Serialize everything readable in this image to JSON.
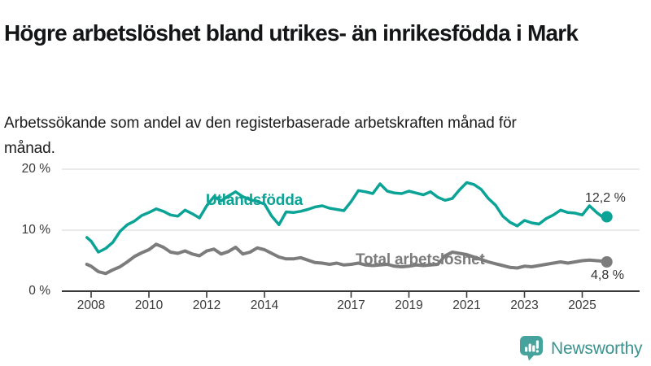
{
  "header": {
    "title": "Högre arbetslöshet bland utrikes- än inrikesfödda i Mark",
    "subtitle": "Arbetssökande som andel av den registerbaserade arbetskraften månad för månad."
  },
  "colors": {
    "accent_teal": "#0aa396",
    "line_gray": "#7c7c7c",
    "grid": "#e3e3e3",
    "axis": "#3a3a3a",
    "logo_teal": "#46a29d",
    "logo_text": "#3a938f"
  },
  "chart_data": {
    "type": "line",
    "title": "Högre arbetslöshet bland utrikes- än inrikesfödda i Mark",
    "xlabel": "",
    "ylabel": "",
    "xlim": [
      2007.8,
      2026.1
    ],
    "ylim": [
      0,
      21
    ],
    "grid": true,
    "legend_position": "inline-on-line",
    "y_ticks": [
      {
        "value": 0,
        "label": "0 %"
      },
      {
        "value": 10,
        "label": "10 %"
      },
      {
        "value": 20,
        "label": "20 %"
      }
    ],
    "x_ticks": [
      {
        "value": 2008,
        "label": "2008"
      },
      {
        "value": 2010,
        "label": "2010"
      },
      {
        "value": 2012,
        "label": "2012"
      },
      {
        "value": 2014,
        "label": "2014"
      },
      {
        "value": 2017,
        "label": "2017"
      },
      {
        "value": 2019,
        "label": "2019"
      },
      {
        "value": 2021,
        "label": "2021"
      },
      {
        "value": 2023,
        "label": "2023"
      },
      {
        "value": 2025,
        "label": "2025"
      }
    ],
    "series": [
      {
        "name": "Utlandsfödda",
        "color": "#0aa396",
        "end_label": "12,2 %",
        "last_value": 12.2,
        "stroke_width": 3.5,
        "x": [
          2007.85,
          2008,
          2008.25,
          2008.5,
          2008.75,
          2009,
          2009.25,
          2009.5,
          2009.75,
          2010,
          2010.25,
          2010.5,
          2010.75,
          2011,
          2011.25,
          2011.5,
          2011.75,
          2012,
          2012.25,
          2012.5,
          2012.75,
          2013,
          2013.25,
          2013.5,
          2013.75,
          2014,
          2014.25,
          2014.5,
          2014.75,
          2015,
          2015.25,
          2015.5,
          2015.75,
          2016,
          2016.25,
          2016.5,
          2016.75,
          2017,
          2017.25,
          2017.5,
          2017.75,
          2018,
          2018.25,
          2018.5,
          2018.75,
          2019,
          2019.25,
          2019.5,
          2019.75,
          2020,
          2020.25,
          2020.5,
          2020.75,
          2021,
          2021.25,
          2021.5,
          2021.75,
          2022,
          2022.25,
          2022.5,
          2022.75,
          2023,
          2023.25,
          2023.5,
          2023.75,
          2024,
          2024.25,
          2024.5,
          2024.75,
          2025,
          2025.25,
          2025.5,
          2025.75,
          2025.85
        ],
        "values": [
          8.8,
          8.2,
          6.4,
          7.0,
          8.0,
          9.8,
          10.9,
          11.5,
          12.4,
          12.9,
          13.5,
          13.1,
          12.5,
          12.3,
          13.3,
          12.7,
          12.0,
          14.0,
          15.5,
          14.8,
          15.6,
          16.3,
          15.5,
          15.0,
          14.7,
          14.3,
          12.3,
          10.9,
          13.0,
          12.9,
          13.1,
          13.4,
          13.8,
          14.0,
          13.6,
          13.4,
          13.2,
          14.7,
          16.5,
          16.3,
          16.0,
          17.6,
          16.4,
          16.1,
          16.0,
          16.4,
          16.1,
          15.8,
          16.3,
          15.4,
          14.9,
          15.2,
          16.6,
          17.8,
          17.5,
          16.7,
          15.2,
          14.1,
          12.3,
          11.3,
          10.7,
          11.6,
          11.2,
          11.0,
          11.9,
          12.5,
          13.3,
          12.9,
          12.8,
          12.5,
          14.0,
          12.9,
          12.0,
          12.2
        ]
      },
      {
        "name": "Total arbetslöshet",
        "color": "#7c7c7c",
        "end_label": "4,8 %",
        "last_value": 4.8,
        "stroke_width": 4,
        "x": [
          2007.85,
          2008,
          2008.25,
          2008.5,
          2008.75,
          2009,
          2009.25,
          2009.5,
          2009.75,
          2010,
          2010.25,
          2010.5,
          2010.75,
          2011,
          2011.25,
          2011.5,
          2011.75,
          2012,
          2012.25,
          2012.5,
          2012.75,
          2013,
          2013.25,
          2013.5,
          2013.75,
          2014,
          2014.25,
          2014.5,
          2014.75,
          2015,
          2015.25,
          2015.5,
          2015.75,
          2016,
          2016.25,
          2016.5,
          2016.75,
          2017,
          2017.25,
          2017.5,
          2017.75,
          2018,
          2018.25,
          2018.5,
          2018.75,
          2019,
          2019.25,
          2019.5,
          2019.75,
          2020,
          2020.25,
          2020.5,
          2020.75,
          2021,
          2021.25,
          2021.5,
          2021.75,
          2022,
          2022.25,
          2022.5,
          2022.75,
          2023,
          2023.25,
          2023.5,
          2023.75,
          2024,
          2024.25,
          2024.5,
          2024.75,
          2025,
          2025.25,
          2025.5,
          2025.75,
          2025.85
        ],
        "values": [
          4.4,
          4.1,
          3.2,
          2.9,
          3.5,
          4.0,
          4.8,
          5.7,
          6.3,
          6.8,
          7.7,
          7.2,
          6.4,
          6.2,
          6.6,
          6.1,
          5.8,
          6.6,
          6.9,
          6.1,
          6.5,
          7.2,
          6.1,
          6.4,
          7.1,
          6.8,
          6.2,
          5.6,
          5.3,
          5.3,
          5.5,
          5.1,
          4.7,
          4.6,
          4.4,
          4.6,
          4.3,
          4.4,
          4.6,
          4.3,
          4.2,
          4.3,
          4.4,
          4.1,
          4.0,
          4.1,
          4.3,
          4.2,
          4.3,
          4.4,
          5.8,
          6.4,
          6.2,
          6.0,
          5.6,
          5.2,
          4.8,
          4.5,
          4.2,
          3.9,
          3.8,
          4.1,
          4.0,
          4.2,
          4.4,
          4.6,
          4.8,
          4.6,
          4.8,
          5.0,
          5.1,
          5.0,
          4.9,
          4.8
        ]
      }
    ]
  },
  "footer": {
    "brand": "Newsworthy"
  }
}
